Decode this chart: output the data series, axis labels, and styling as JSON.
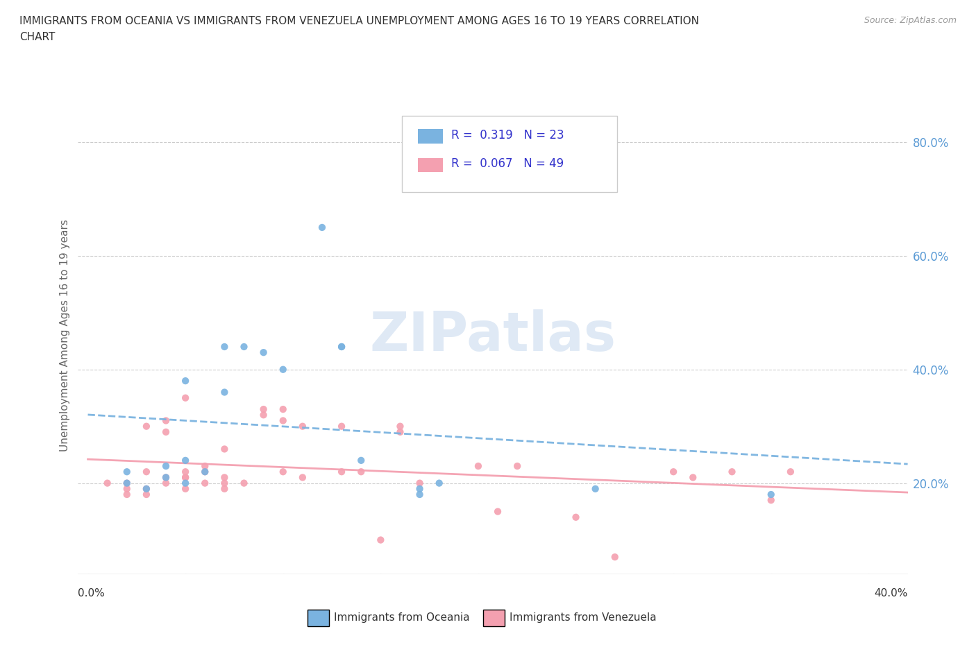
{
  "title_line1": "IMMIGRANTS FROM OCEANIA VS IMMIGRANTS FROM VENEZUELA UNEMPLOYMENT AMONG AGES 16 TO 19 YEARS CORRELATION",
  "title_line2": "CHART",
  "source_text": "Source: ZipAtlas.com",
  "ylabel": "Unemployment Among Ages 16 to 19 years",
  "y_tick_labels": [
    "20.0%",
    "40.0%",
    "60.0%",
    "80.0%"
  ],
  "y_tick_values": [
    0.2,
    0.4,
    0.6,
    0.8
  ],
  "xlim": [
    -0.005,
    0.42
  ],
  "ylim": [
    0.04,
    0.88
  ],
  "watermark": "ZIPatlas",
  "legend_r_oceania": "R =  0.319   N = 23",
  "legend_r_venezuela": "R =  0.067   N = 49",
  "color_oceania": "#7ab3e0",
  "color_venezuela": "#f4a0b0",
  "legend_text_color": "#3333cc",
  "oceania_scatter_x": [
    0.02,
    0.02,
    0.03,
    0.04,
    0.04,
    0.05,
    0.05,
    0.05,
    0.06,
    0.07,
    0.07,
    0.08,
    0.09,
    0.1,
    0.12,
    0.13,
    0.13,
    0.14,
    0.17,
    0.17,
    0.18,
    0.26,
    0.35
  ],
  "oceania_scatter_y": [
    0.2,
    0.22,
    0.19,
    0.21,
    0.23,
    0.2,
    0.24,
    0.38,
    0.22,
    0.36,
    0.44,
    0.44,
    0.43,
    0.4,
    0.65,
    0.44,
    0.44,
    0.24,
    0.18,
    0.19,
    0.2,
    0.19,
    0.18
  ],
  "venezuela_scatter_x": [
    0.01,
    0.02,
    0.02,
    0.02,
    0.03,
    0.03,
    0.03,
    0.03,
    0.04,
    0.04,
    0.04,
    0.04,
    0.05,
    0.05,
    0.05,
    0.05,
    0.05,
    0.06,
    0.06,
    0.06,
    0.07,
    0.07,
    0.07,
    0.07,
    0.08,
    0.09,
    0.09,
    0.1,
    0.1,
    0.1,
    0.11,
    0.11,
    0.13,
    0.13,
    0.14,
    0.15,
    0.16,
    0.16,
    0.17,
    0.2,
    0.21,
    0.22,
    0.25,
    0.27,
    0.3,
    0.31,
    0.33,
    0.35,
    0.36
  ],
  "venezuela_scatter_y": [
    0.2,
    0.19,
    0.18,
    0.2,
    0.22,
    0.3,
    0.18,
    0.19,
    0.2,
    0.21,
    0.29,
    0.31,
    0.19,
    0.21,
    0.21,
    0.22,
    0.35,
    0.2,
    0.22,
    0.23,
    0.19,
    0.2,
    0.21,
    0.26,
    0.2,
    0.32,
    0.33,
    0.22,
    0.31,
    0.33,
    0.21,
    0.3,
    0.22,
    0.3,
    0.22,
    0.1,
    0.29,
    0.3,
    0.2,
    0.23,
    0.15,
    0.23,
    0.14,
    0.07,
    0.22,
    0.21,
    0.22,
    0.17,
    0.22
  ],
  "bottom_legend_oceania": "Immigrants from Oceania",
  "bottom_legend_venezuela": "Immigrants from Venezuela"
}
